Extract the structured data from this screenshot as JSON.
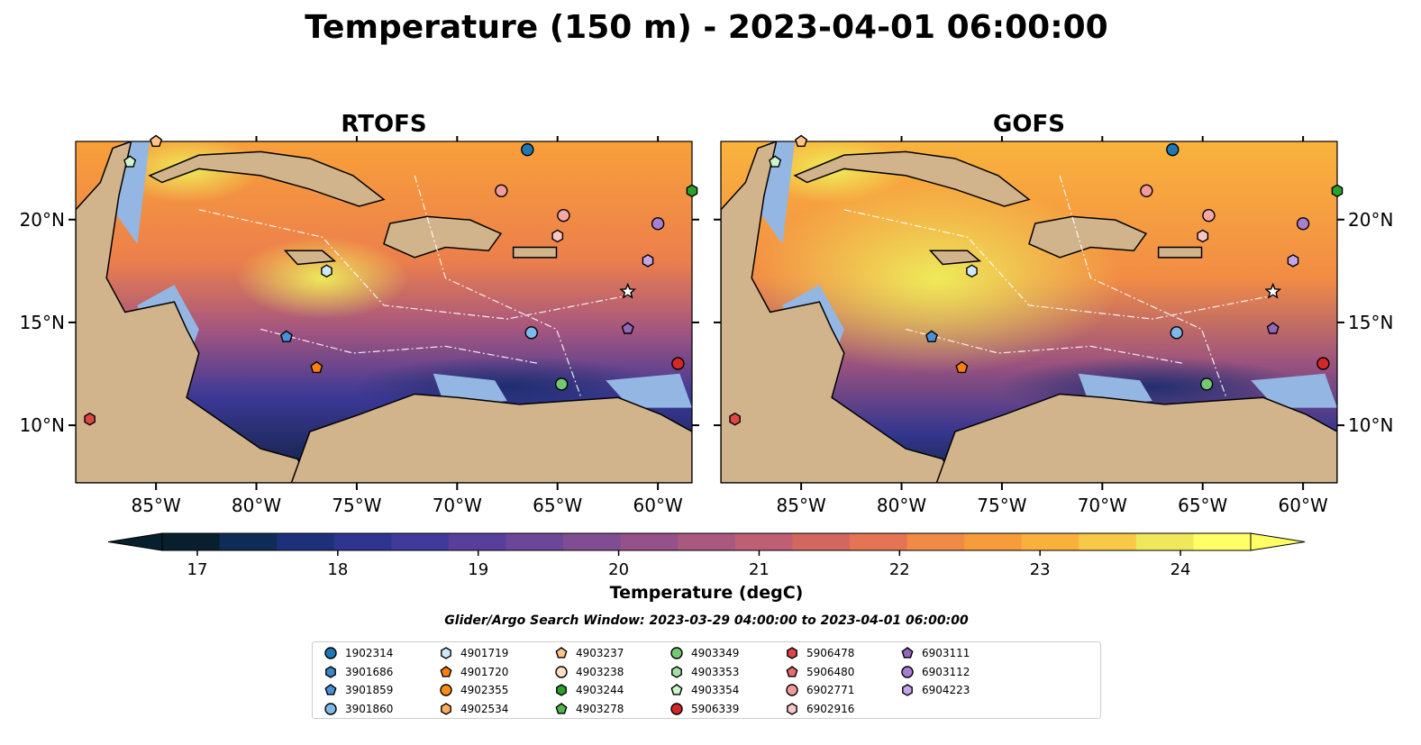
{
  "title": "Temperature (150 m) - 2023-04-01 06:00:00",
  "panels": [
    {
      "label": "RTOFS"
    },
    {
      "label": "GOFS"
    }
  ],
  "axes": {
    "lon_ticks": [
      "85°W",
      "80°W",
      "75°W",
      "70°W",
      "65°W",
      "60°W"
    ],
    "lon_values": [
      -85,
      -80,
      -75,
      -70,
      -65,
      -60
    ],
    "lat_ticks": [
      "20°N",
      "15°N",
      "10°N"
    ],
    "lat_values": [
      20,
      15,
      10
    ],
    "lon_range": [
      -89,
      -58.3
    ],
    "lat_range": [
      7.2,
      23.8
    ]
  },
  "colorbar": {
    "label": "Temperature (degC)",
    "ticks": [
      "17",
      "18",
      "19",
      "20",
      "21",
      "22",
      "23",
      "24"
    ],
    "tick_values": [
      17,
      18,
      19,
      20,
      21,
      22,
      23,
      24
    ],
    "range": [
      16.75,
      24.5
    ],
    "extend": "both",
    "colors": [
      "#08202d",
      "#0f2c56",
      "#1e307a",
      "#2d3590",
      "#413a9a",
      "#573f9b",
      "#6c4697",
      "#804c92",
      "#955189",
      "#aa587f",
      "#bf5f73",
      "#d2675f",
      "#e47453",
      "#f08a45",
      "#f79c3a",
      "#f9b13c",
      "#f8c946",
      "#eee85a",
      "#ffff66"
    ]
  },
  "search_window": "Glider/Argo Search Window: 2023-03-29 04:00:00 to 2023-04-01 06:00:00",
  "floats": [
    {
      "id": "1902314",
      "marker": "circle",
      "color": "#1f77b4",
      "lon": -66.5,
      "lat": 23.4
    },
    {
      "id": "3901686",
      "marker": "hexagon",
      "color": "#3d85c6",
      "lon": -66.5,
      "lat": 23.4
    },
    {
      "id": "3901859",
      "marker": "pentagon",
      "color": "#4a90d9",
      "lon": -78.5,
      "lat": 14.3
    },
    {
      "id": "3901860",
      "marker": "circle",
      "color": "#7fb8ea",
      "lon": -66.3,
      "lat": 14.5
    },
    {
      "id": "4901719",
      "marker": "hexagon",
      "color": "#cfe8fb",
      "lon": -76.5,
      "lat": 17.5
    },
    {
      "id": "4901720",
      "marker": "pentagon",
      "color": "#ff7f0e",
      "lon": -77.0,
      "lat": 12.8
    },
    {
      "id": "4902355",
      "marker": "circle",
      "color": "#ff8c1a",
      "lon": -77.0,
      "lat": 12.8
    },
    {
      "id": "4902534",
      "marker": "hexagon",
      "color": "#ffad5c",
      "lon": -77.0,
      "lat": 12.8
    },
    {
      "id": "4903237",
      "marker": "pentagon",
      "color": "#ffc48a",
      "lon": -85.0,
      "lat": 23.8
    },
    {
      "id": "4903238",
      "marker": "circle",
      "color": "#ffe0c2",
      "lon": -85.0,
      "lat": 23.8
    },
    {
      "id": "4903244",
      "marker": "hexagon",
      "color": "#2ca02c",
      "lon": -58.3,
      "lat": 21.4
    },
    {
      "id": "4903278",
      "marker": "pentagon",
      "color": "#4cb84c",
      "lon": -58.3,
      "lat": 21.4
    },
    {
      "id": "4903349",
      "marker": "circle",
      "color": "#73c973",
      "lon": -64.8,
      "lat": 12.0
    },
    {
      "id": "4903353",
      "marker": "hexagon",
      "color": "#a3e0a3",
      "lon": -64.8,
      "lat": 12.0
    },
    {
      "id": "4903354",
      "marker": "pentagon",
      "color": "#ccf5cc",
      "lon": -86.3,
      "lat": 22.8
    },
    {
      "id": "5906339",
      "marker": "circle",
      "color": "#d62728",
      "lon": -59.0,
      "lat": 13.0
    },
    {
      "id": "5906478",
      "marker": "hexagon",
      "color": "#e04545",
      "lon": -88.3,
      "lat": 10.3
    },
    {
      "id": "5906480",
      "marker": "pentagon",
      "color": "#e86b6b",
      "lon": -88.3,
      "lat": 10.3
    },
    {
      "id": "6902771",
      "marker": "circle",
      "color": "#f09a9a",
      "lon": -67.8,
      "lat": 21.4
    },
    {
      "id": "6902916",
      "marker": "hexagon",
      "color": "#f7c6c6",
      "lon": -65.0,
      "lat": 19.2
    },
    {
      "id": "6903111",
      "marker": "pentagon",
      "color": "#9467bd",
      "lon": -61.5,
      "lat": 14.7
    },
    {
      "id": "6903112",
      "marker": "circle",
      "color": "#a77fd1",
      "lon": -60.0,
      "lat": 19.8
    },
    {
      "id": "6904223",
      "marker": "hexagon",
      "color": "#c3a6e8",
      "lon": -60.5,
      "lat": 18.0
    }
  ],
  "extra_markers": [
    {
      "marker": "circle",
      "color": "#f5a8a8",
      "lon": -64.7,
      "lat": 20.2
    },
    {
      "marker": "star",
      "color": "#ffffff",
      "lon": -61.5,
      "lat": 16.5
    }
  ],
  "map_colors": {
    "land": "#d2b48c",
    "shelf": "#94b6e3",
    "land_edge": "#000000"
  }
}
